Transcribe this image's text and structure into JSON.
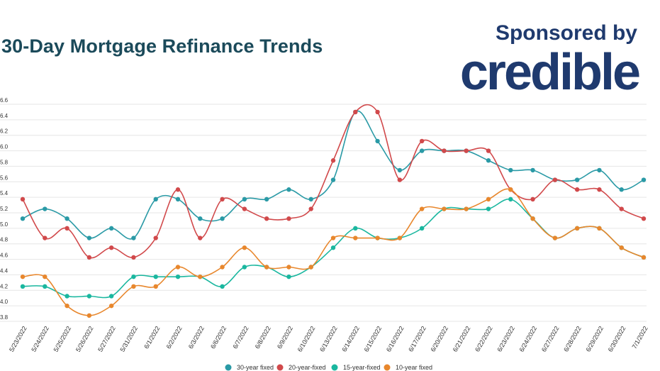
{
  "header": {
    "title": "30-Day Mortgage Refinance Trends",
    "sponsor_label": "Sponsored by",
    "sponsor_brand": "credible"
  },
  "colors": {
    "title": "#1b4a5a",
    "brand": "#1f3a6e",
    "grid": "#e6e6e6"
  },
  "chart_data": {
    "type": "line",
    "title": "30-Day Mortgage Refinance Trends",
    "xlabel": "",
    "ylabel": "",
    "ylim": [
      3.8,
      6.6
    ],
    "yticks": [
      "3.8",
      "4.0",
      "4.2",
      "4.4",
      "4.6",
      "4.8",
      "5.0",
      "5.2",
      "5.4",
      "5.6",
      "5.8",
      "6.0",
      "6.2",
      "6.4",
      "6.6"
    ],
    "grid": true,
    "legend_position": "bottom",
    "categories": [
      "5/23/2022",
      "5/24/2022",
      "5/25/2022",
      "5/26/2022",
      "5/27/2022",
      "5/31/2022",
      "6/1/2022",
      "6/2/2022",
      "6/3/2022",
      "6/6/2022",
      "6/7/2022",
      "6/8/2022",
      "6/9/2022",
      "6/10/2022",
      "6/13/2022",
      "6/14/2022",
      "6/15/2022",
      "6/16/2022",
      "6/17/2022",
      "6/20/2022",
      "6/21/2022",
      "6/22/2022",
      "6/23/2022",
      "6/24/2022",
      "6/27/2022",
      "6/28/2022",
      "6/29/2022",
      "6/30/2022",
      "7/1/2022"
    ],
    "series": [
      {
        "name": "30-year fixed",
        "color": "#2a9aa6",
        "values": [
          5.125,
          5.25,
          5.125,
          4.875,
          5.0,
          4.875,
          5.375,
          5.375,
          5.125,
          5.125,
          5.375,
          5.375,
          5.5,
          5.375,
          5.625,
          6.5,
          6.125,
          5.75,
          6.0,
          6.0,
          6.0,
          5.875,
          5.75,
          5.75,
          5.625,
          5.625,
          5.75,
          5.5,
          5.625
        ]
      },
      {
        "name": "20-year-fixed",
        "color": "#d1494b",
        "values": [
          5.375,
          4.875,
          5.0,
          4.625,
          4.75,
          4.625,
          4.875,
          5.5,
          4.875,
          5.375,
          5.25,
          5.125,
          5.125,
          5.25,
          5.875,
          6.5,
          6.5,
          5.625,
          6.125,
          6.0,
          6.0,
          6.0,
          5.5,
          5.375,
          5.625,
          5.5,
          5.5,
          5.25,
          5.125
        ]
      },
      {
        "name": "15-year-fixed",
        "color": "#1ab79f",
        "values": [
          4.25,
          4.25,
          4.125,
          4.125,
          4.125,
          4.375,
          4.375,
          4.375,
          4.375,
          4.25,
          4.5,
          4.5,
          4.375,
          4.5,
          4.75,
          5.0,
          4.875,
          4.875,
          5.0,
          5.25,
          5.25,
          5.25,
          5.375,
          5.125,
          4.875,
          5.0,
          5.0,
          4.75,
          4.625
        ]
      },
      {
        "name": "10-year fixed",
        "color": "#e8872d",
        "values": [
          4.375,
          4.375,
          4.0,
          3.875,
          4.0,
          4.25,
          4.25,
          4.5,
          4.375,
          4.5,
          4.75,
          4.5,
          4.5,
          4.5,
          4.875,
          4.875,
          4.875,
          4.875,
          5.25,
          5.25,
          5.25,
          5.375,
          5.5,
          5.125,
          4.875,
          5.0,
          5.0,
          4.75,
          4.625
        ]
      }
    ]
  }
}
